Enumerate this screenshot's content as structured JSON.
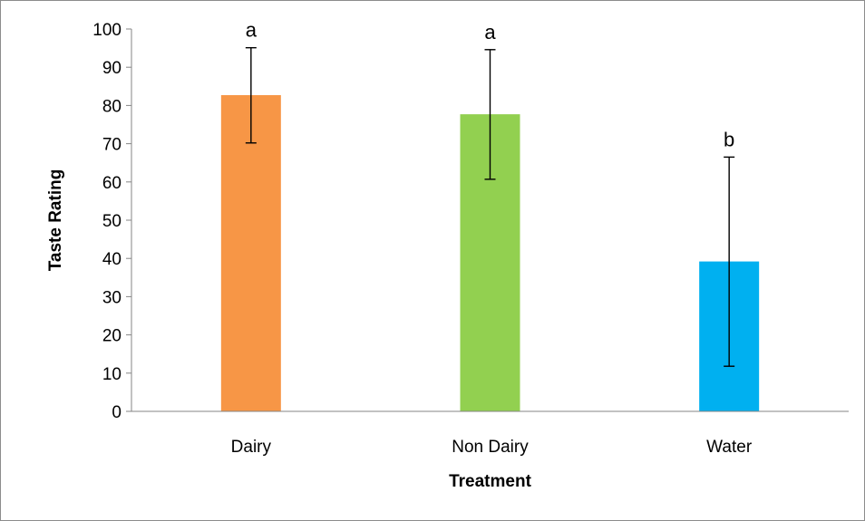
{
  "chart_data": {
    "type": "bar",
    "title": "",
    "xlabel": "Treatment",
    "ylabel": "Taste Rating",
    "ylim": [
      0,
      100
    ],
    "yticks": [
      0,
      10,
      20,
      30,
      40,
      50,
      60,
      70,
      80,
      90,
      100
    ],
    "grid": false,
    "categories": [
      "Dairy",
      "Non Dairy",
      "Water"
    ],
    "values": [
      82.7,
      77.7,
      39.2
    ],
    "error_bars": [
      {
        "upper": 95.1,
        "lower": 70.2
      },
      {
        "upper": 94.6,
        "lower": 60.7
      },
      {
        "upper": 66.5,
        "lower": 11.8
      }
    ],
    "significance_labels": [
      "a",
      "a",
      "b"
    ],
    "colors": [
      "#F79646",
      "#92D050",
      "#00B0F0"
    ]
  }
}
